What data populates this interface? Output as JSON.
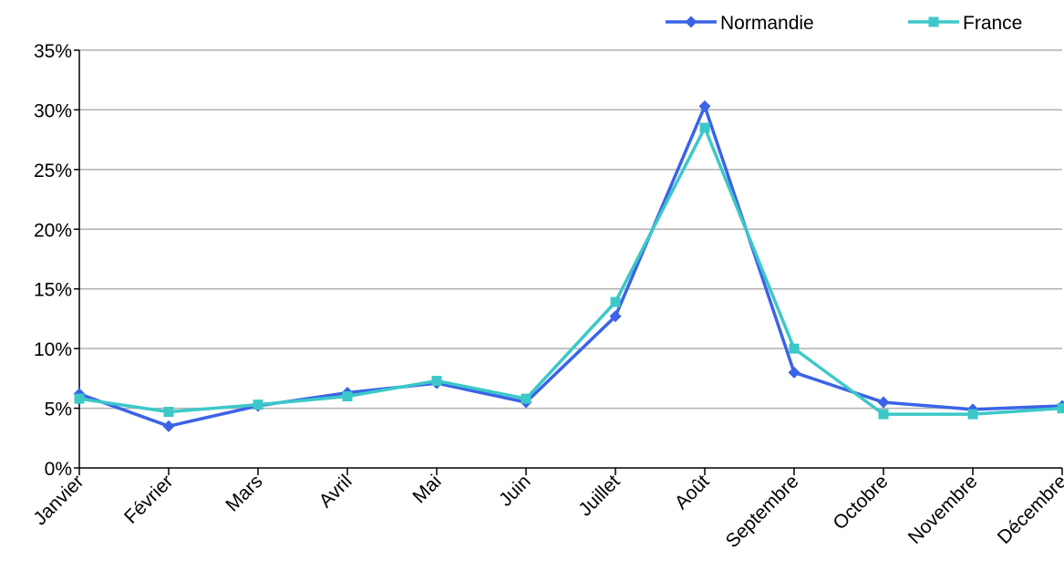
{
  "chart_data": {
    "type": "line",
    "title": "",
    "xlabel": "",
    "ylabel": "",
    "categories": [
      "Janvier",
      "Février",
      "Mars",
      "Avril",
      "Mai",
      "Juin",
      "Juillet",
      "Août",
      "Septembre",
      "Octobre",
      "Novembre",
      "Décembre"
    ],
    "series": [
      {
        "name": "Normandie",
        "color": "#3b63e6",
        "marker": "diamond",
        "values": [
          6.2,
          3.5,
          5.2,
          6.3,
          7.1,
          5.5,
          12.7,
          30.3,
          8.0,
          5.5,
          4.9,
          5.2
        ]
      },
      {
        "name": "France",
        "color": "#3cc8c8",
        "marker": "square",
        "values": [
          5.8,
          4.7,
          5.3,
          6.0,
          7.3,
          5.8,
          13.9,
          28.5,
          10.0,
          4.5,
          4.5,
          5.0
        ]
      }
    ],
    "ylim": [
      0,
      35
    ],
    "yticks": [
      0,
      5,
      10,
      15,
      20,
      25,
      30,
      35
    ],
    "ytick_labels": [
      "0%",
      "5%",
      "10%",
      "15%",
      "20%",
      "25%",
      "30%",
      "35%"
    ],
    "grid": true,
    "legend_position": "top-right"
  }
}
